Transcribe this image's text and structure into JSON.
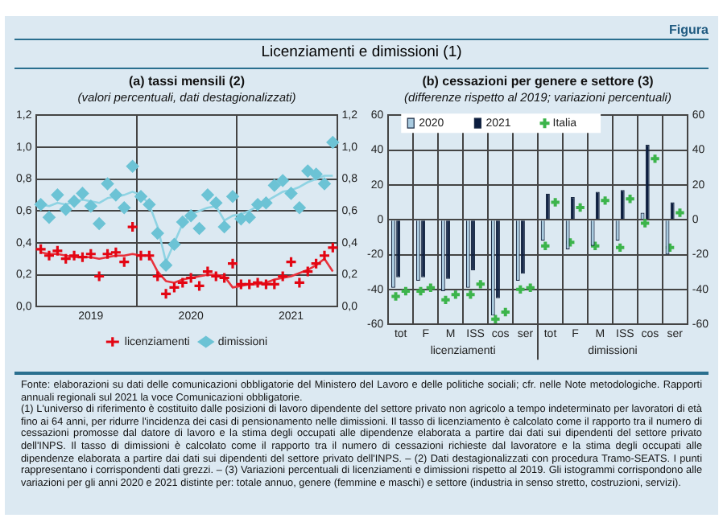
{
  "chart_data": [
    {
      "type": "line",
      "title": "(a) tassi mensili (2)",
      "subtitle": "(valori percentuali, dati destagionalizzati)",
      "categories": [
        null,
        null,
        null,
        null,
        null,
        null,
        "2019",
        null,
        null,
        null,
        null,
        null,
        null,
        null,
        null,
        null,
        null,
        null,
        "2020",
        null,
        null,
        null,
        null,
        null,
        null,
        null,
        null,
        null,
        null,
        null,
        "2021",
        null,
        null,
        null,
        null,
        null
      ],
      "series": [
        {
          "type": "line",
          "color": "#e8323c",
          "marker": "none",
          "values": [
            0.34,
            0.33,
            0.33,
            0.32,
            0.31,
            0.31,
            0.31,
            0.3,
            0.31,
            0.32,
            0.32,
            0.33,
            0.32,
            0.32,
            0.22,
            0.16,
            0.15,
            0.17,
            0.18,
            0.19,
            0.2,
            0.2,
            0.19,
            0.12,
            0.13,
            0.14,
            0.14,
            0.15,
            0.17,
            0.18,
            0.19,
            0.21,
            0.23,
            0.26,
            0.3,
            0.22
          ]
        },
        {
          "type": "line",
          "color": "#8fd3e3",
          "marker": "none",
          "values": [
            0.64,
            0.63,
            0.65,
            0.64,
            0.66,
            0.67,
            0.66,
            0.65,
            0.68,
            0.69,
            0.7,
            0.72,
            0.7,
            0.64,
            0.5,
            0.28,
            0.4,
            0.52,
            0.58,
            0.6,
            0.62,
            0.63,
            0.54,
            0.57,
            0.58,
            0.6,
            0.63,
            0.66,
            0.69,
            0.72,
            0.73,
            0.75,
            0.78,
            0.8,
            0.82,
            0.82
          ]
        },
        {
          "type": "scatter",
          "name": "licenziamenti",
          "color": "#e30613",
          "marker": "cross",
          "values": [
            0.36,
            0.32,
            0.35,
            0.3,
            0.32,
            0.31,
            0.33,
            0.19,
            0.33,
            0.34,
            0.28,
            0.5,
            0.32,
            0.32,
            0.19,
            0.08,
            0.12,
            0.15,
            0.18,
            0.13,
            0.22,
            0.19,
            0.18,
            0.27,
            0.14,
            0.14,
            0.15,
            0.14,
            0.14,
            0.19,
            0.28,
            0.15,
            0.22,
            0.27,
            0.32,
            0.37
          ]
        },
        {
          "type": "scatter",
          "name": "dimissioni",
          "color": "#6cc3d5",
          "marker": "diamond",
          "values": [
            0.64,
            0.56,
            0.7,
            0.61,
            0.66,
            0.71,
            0.63,
            0.52,
            0.77,
            0.7,
            0.62,
            0.88,
            0.69,
            0.64,
            0.46,
            0.26,
            0.39,
            0.53,
            0.57,
            0.49,
            0.7,
            0.65,
            0.5,
            0.69,
            0.55,
            0.56,
            0.64,
            0.65,
            0.76,
            0.79,
            0.71,
            0.62,
            0.85,
            0.83,
            0.77,
            1.03
          ]
        }
      ],
      "ylim": [
        0,
        1.2
      ],
      "yticks": [
        {
          "value": 0,
          "label": "0,0"
        },
        {
          "value": 0.2,
          "label": "0,2"
        },
        {
          "value": 0.4,
          "label": "0,4"
        },
        {
          "value": 0.6,
          "label": "0,6"
        },
        {
          "value": 0.8,
          "label": "0,8"
        },
        {
          "value": 1,
          "label": "1,0"
        },
        {
          "value": 1.2,
          "label": "1,2"
        }
      ],
      "y2lim": [
        0,
        1.2
      ],
      "y2ticks": [
        {
          "value": 0,
          "label": "0,0"
        },
        {
          "value": 0.2,
          "label": "0,2"
        },
        {
          "value": 0.4,
          "label": "0,4"
        },
        {
          "value": 0.6,
          "label": "0,6"
        },
        {
          "value": 0.8,
          "label": "0,8"
        },
        {
          "value": 1,
          "label": "1,0"
        },
        {
          "value": 1.2,
          "label": "1,2"
        }
      ],
      "grid": true,
      "legend": "bottom",
      "annotations": [
        "Figura",
        "Licenziamenti e dimissioni (1)",
        "Fonte: elaborazioni su dati delle comunicazioni obbligatorie del Ministero del Lavoro e delle politiche sociali; cfr. nelle Note metodologiche. Rapporti annuali regionali sul 2021 la voce Comunicazioni obbligatorie.",
        "(1) L'universo di riferimento è costituito dalle posizioni di lavoro dipendente del settore privato non agricolo a tempo indeterminato per lavoratori di età fino ai 64 anni, per ridurre l'incidenza dei casi di pensionamento nelle dimissioni. Il tasso di licenziamento è calcolato come il rapporto tra il numero di cessazioni promosse dal datore di lavoro e la stima degli occupati alle dipendenze elaborata a partire dai dati sui dipendenti del settore privato dell'INPS. Il tasso di dimissioni è calcolato come il rapporto tra il numero di cessazioni richieste dal lavoratore e la stima degli occupati alle dipendenze elaborata a partire dai dati sui dipendenti del settore privato dell'INPS. – (2) Dati destagionalizzati con procedura Tramo-SEATS. I punti rappresentano i corrispondenti dati grezzi. – (3) Variazioni percentuali di licenziamenti e dimissioni rispetto al 2019. Gli istogrammi corrispondono alle variazioni per gli anni 2020 e 2021 distinte per: totale annuo, genere (femmine e maschi) e settore (industria in senso stretto, costruzioni, servizi)."
      ]
    },
    {
      "type": "bar",
      "title": "(b) cessazioni per genere e settore (3)",
      "subtitle": "(differenze rispetto al 2019; variazioni percentuali)",
      "categories": [
        "tot",
        "F",
        "M",
        "ISS",
        "cos",
        "ser",
        "tot",
        "F",
        "M",
        "ISS",
        "cos",
        "ser"
      ],
      "series": [
        {
          "type": "bar",
          "name": "2020",
          "color": "#a9cbe0",
          "values": [
            -39,
            -35,
            -41,
            -39,
            -55,
            -35,
            -12,
            -17,
            -15,
            -12,
            4,
            -20
          ]
        },
        {
          "type": "bar",
          "name": "2021",
          "color": "#0b1d3f",
          "values": [
            -33,
            -33,
            -34,
            -29,
            -45,
            -31,
            15,
            13,
            16,
            17,
            43,
            10
          ]
        },
        {
          "type": "scatter",
          "name": "Italia",
          "color": "#3cb44b",
          "marker": "cross",
          "values": [
            -44,
            -41,
            -46,
            -43,
            -57,
            -40,
            -15,
            -13,
            -15,
            -16,
            -2,
            -16
          ]
        },
        {
          "type": "scatter",
          "color": "#3cb44b",
          "marker": "cross",
          "values": [
            -41,
            -39,
            -43,
            -37,
            -53,
            -39,
            10,
            7,
            11,
            12,
            35,
            4
          ]
        }
      ],
      "ylim": [
        -60,
        60
      ],
      "yticks": [
        -60,
        -40,
        -20,
        0,
        20,
        40,
        60
      ],
      "y2lim": [
        -60,
        60
      ],
      "y2ticks": [
        -60,
        -40,
        -20,
        0,
        20,
        40,
        60
      ],
      "grid": true,
      "legend": "top",
      "annotations": [
        "licenziamenti",
        "dimissioni"
      ]
    }
  ]
}
